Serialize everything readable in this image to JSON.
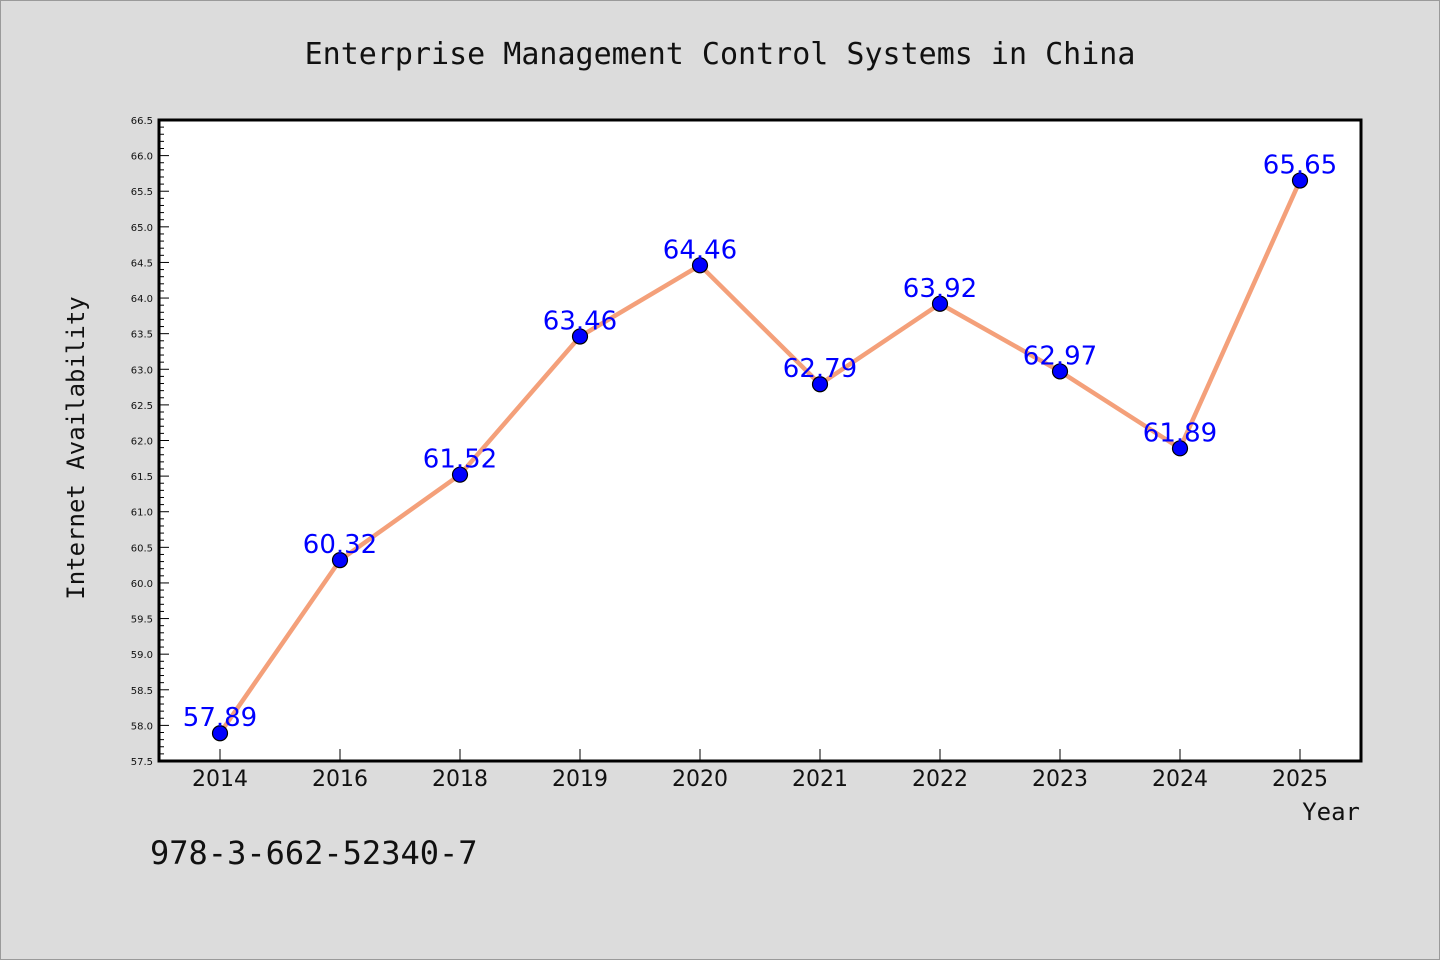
{
  "colors": {
    "background": "#dcdcdc",
    "plot_background": "#ffffff",
    "line": "#f4a07a",
    "marker_fill": "#0000ff",
    "data_label": "#0000ff"
  },
  "footer": {
    "text": "978-3-662-52340-7"
  },
  "chart_data": {
    "type": "line",
    "title": "Enterprise Management Control Systems in China",
    "xlabel": "Year",
    "ylabel": "Internet Availability",
    "categories": [
      "2014",
      "2016",
      "2018",
      "2019",
      "2020",
      "2021",
      "2022",
      "2023",
      "2024",
      "2025"
    ],
    "series": [
      {
        "values": [
          57.89,
          60.32,
          61.52,
          63.46,
          64.46,
          62.79,
          63.92,
          62.97,
          61.89,
          65.65
        ]
      }
    ],
    "data_labels": [
      "57.89",
      "60.32",
      "61.52",
      "63.46",
      "64.46",
      "62.79",
      "63.92",
      "62.97",
      "61.89",
      "65.65"
    ],
    "ylim": [
      57.5,
      66.5
    ],
    "yticks": [
      "57.5",
      "58.0",
      "58.5",
      "59.0",
      "59.5",
      "60.0",
      "60.5",
      "61.0",
      "61.5",
      "62.0",
      "62.5",
      "63.0",
      "63.5",
      "64.0",
      "64.5",
      "65.0",
      "65.5",
      "66.0",
      "66.5"
    ],
    "grid": false,
    "legend": "none"
  }
}
